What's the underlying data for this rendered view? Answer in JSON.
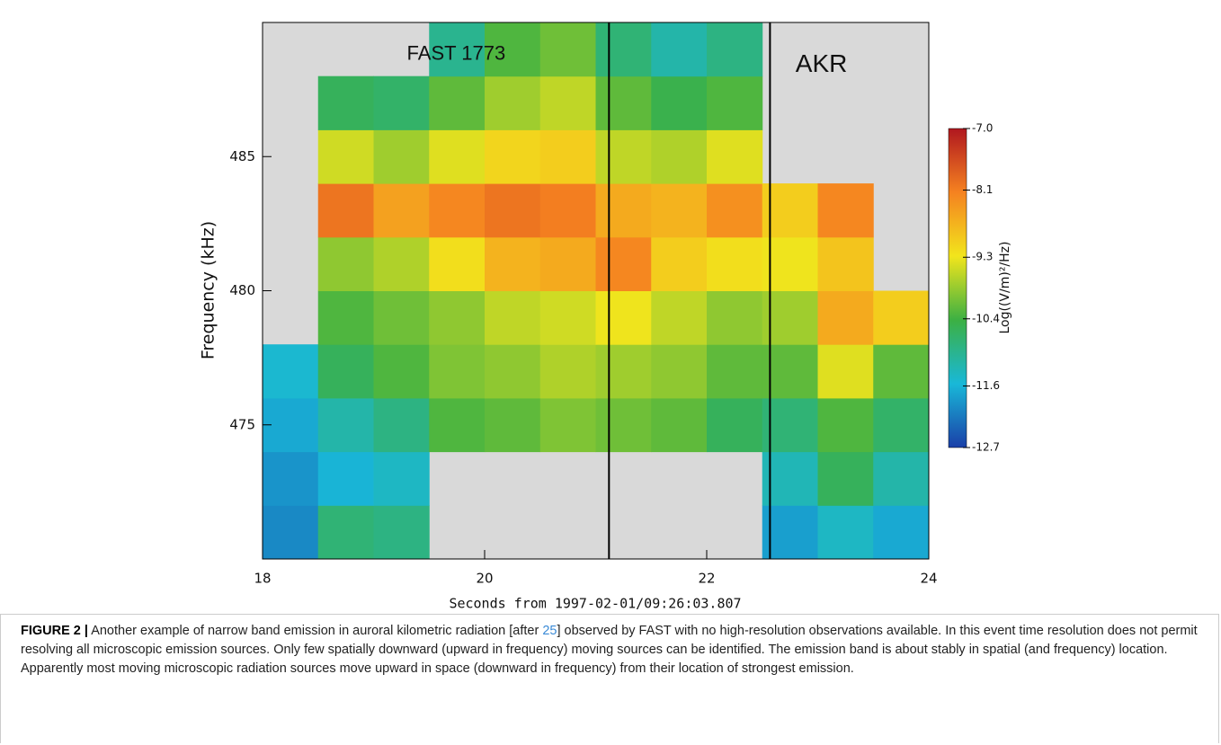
{
  "chart_data": {
    "type": "heatmap",
    "xlabel": "Seconds from 1997-02-01/09:26:03.807",
    "ylabel": "Frequency (kHz)",
    "xlim": [
      18,
      24
    ],
    "ylim": [
      470,
      490
    ],
    "xticks": [
      18,
      20,
      22,
      24
    ],
    "yticks": [
      475,
      480,
      485
    ],
    "x_edges": [
      18,
      18.5,
      19,
      19.5,
      20,
      20.5,
      21,
      21.5,
      22,
      22.5,
      23,
      23.5,
      24
    ],
    "y_edges": [
      470,
      472,
      474,
      476,
      478,
      480,
      482,
      484,
      486,
      488,
      490
    ],
    "values": [
      [
        -12.0,
        -10.8,
        -10.9,
        null,
        null,
        null,
        null,
        null,
        null,
        -11.8,
        -11.4,
        -11.7
      ],
      [
        -11.9,
        -11.6,
        -11.4,
        null,
        null,
        null,
        null,
        null,
        null,
        -11.3,
        -10.6,
        -11.2
      ],
      [
        -11.7,
        -11.2,
        -10.9,
        -10.3,
        -10.2,
        -10.0,
        -10.1,
        -10.2,
        -10.6,
        -10.8,
        -10.3,
        -10.7
      ],
      [
        -11.5,
        -10.6,
        -10.3,
        -10.0,
        -9.9,
        -9.7,
        -9.8,
        -9.9,
        -10.2,
        -10.2,
        -9.4,
        -10.2
      ],
      [
        null,
        -10.3,
        -10.1,
        -9.9,
        -9.6,
        -9.5,
        -9.3,
        -9.6,
        -9.9,
        -9.8,
        -8.6,
        -9.0
      ],
      [
        null,
        -9.9,
        -9.7,
        -9.2,
        -8.7,
        -8.6,
        -8.2,
        -9.0,
        -9.2,
        -9.3,
        -8.9,
        null
      ],
      [
        null,
        -8.0,
        -8.5,
        -8.2,
        -8.0,
        -8.1,
        -8.6,
        -8.7,
        -8.3,
        -9.0,
        -8.2,
        null
      ],
      [
        null,
        -9.5,
        -9.8,
        -9.4,
        -9.1,
        -9.0,
        -9.6,
        -9.7,
        -9.4,
        null,
        null,
        null
      ],
      [
        null,
        -10.6,
        -10.7,
        -10.2,
        -9.8,
        -9.6,
        -10.2,
        -10.5,
        -10.3,
        null,
        null,
        null
      ],
      [
        null,
        null,
        null,
        -11.0,
        -10.3,
        -10.1,
        -10.8,
        -11.2,
        -10.9,
        null,
        null,
        null
      ]
    ],
    "no_data_color": "#d9d9d9",
    "colorscale": [
      "#1a3fa8",
      "#19b8d8",
      "#3cb043",
      "#f2e51c",
      "#f58220",
      "#b0171f"
    ],
    "clim": [
      -12.7,
      -7
    ],
    "colorbar_label": "Log((V/m)²/Hz)",
    "colorbar_ticks": [
      {
        "value": -7,
        "label": "-7.0"
      },
      -8.1,
      -9.3,
      -10.4,
      -11.6,
      -12.7
    ],
    "vlines": [
      21.12,
      22.57
    ],
    "annotations": [
      {
        "text": "FAST 1773",
        "x": 19.3,
        "y": 488.8
      },
      {
        "text": "AKR",
        "x": 22.8,
        "y": 488.4
      }
    ]
  },
  "caption": {
    "label": "FIGURE 2 |",
    "text_before": " Another example of narrow band emission in auroral kilometric radiation [after ",
    "ref": "25",
    "text_after": "] observed by FAST with no high-resolution observations available. In this event time resolution does not permit resolving all microscopic emission sources. Only few spatially downward (upward in frequency) moving sources can be identified. The emission band is about stably in spatial (and frequency) location. Apparently most moving microscopic radiation sources move upward in space (downward in frequency) from their location of strongest emission."
  }
}
